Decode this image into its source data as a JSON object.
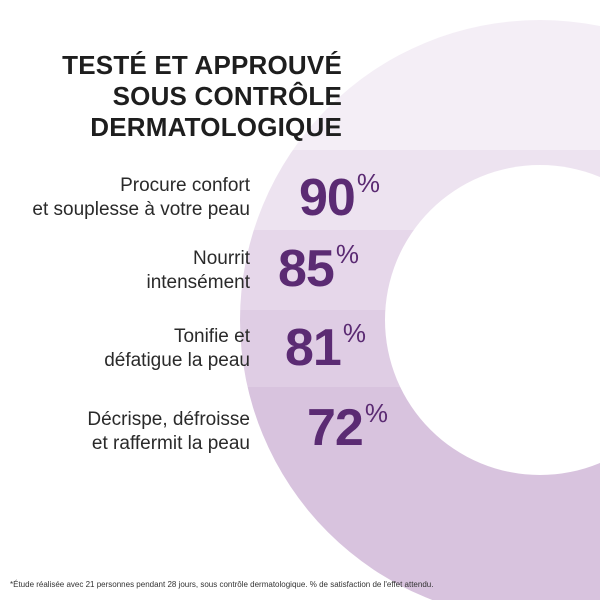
{
  "title_lines": [
    "TESTÉ ET APPROUVÉ",
    "SOUS CONTRÔLE",
    "DERMATOLOGIQUE"
  ],
  "claims": [
    {
      "lines": [
        "Procure confort",
        "et souplesse à votre peau"
      ],
      "value": 90,
      "value_text": "90",
      "unit": "%"
    },
    {
      "lines": [
        "Nourrit",
        "intensément"
      ],
      "value": 85,
      "value_text": "85",
      "unit": "%"
    },
    {
      "lines": [
        "Tonifie et",
        "défatigue la peau"
      ],
      "value": 81,
      "value_text": "81",
      "unit": "%"
    },
    {
      "lines": [
        "Décrispe, défroisse",
        "et raffermit la peau"
      ],
      "value": 72,
      "value_text": "72",
      "unit": "%"
    }
  ],
  "footnote": "*Étude réalisée avec 21 personnes pendant 28 jours, sous contrôle dermatologique. % de satisfaction de l'effet attendu.",
  "colors": {
    "ring_light": "#f4eef6",
    "ring_band_1": "#ede3f0",
    "ring_band_2": "#e6d7ea",
    "ring_band_3": "#dfcde4",
    "ring_band_4": "#d8c3de",
    "percent": "#5b2b73",
    "title": "#1e1e1e"
  }
}
